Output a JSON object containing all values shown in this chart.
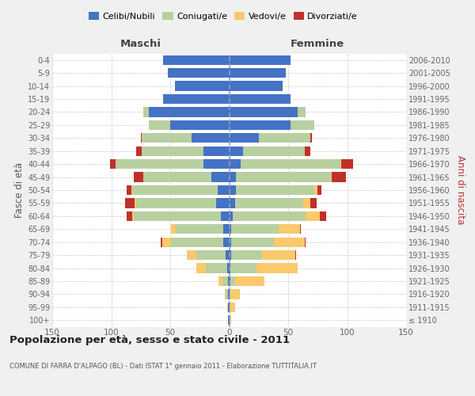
{
  "age_groups": [
    "100+",
    "95-99",
    "90-94",
    "85-89",
    "80-84",
    "75-79",
    "70-74",
    "65-69",
    "60-64",
    "55-59",
    "50-54",
    "45-49",
    "40-44",
    "35-39",
    "30-34",
    "25-29",
    "20-24",
    "15-19",
    "10-14",
    "5-9",
    "0-4"
  ],
  "birth_years": [
    "≤ 1910",
    "1911-1915",
    "1916-1920",
    "1921-1925",
    "1926-1930",
    "1931-1935",
    "1936-1940",
    "1941-1945",
    "1946-1950",
    "1951-1955",
    "1956-1960",
    "1961-1965",
    "1966-1970",
    "1971-1975",
    "1976-1980",
    "1981-1985",
    "1986-1990",
    "1991-1995",
    "1996-2000",
    "2001-2005",
    "2006-2010"
  ],
  "colors": {
    "celibi": "#4472C4",
    "coniugati": "#b8cfa0",
    "vedovi": "#f9c96b",
    "divorziati": "#c0302a"
  },
  "maschi": {
    "celibi": [
      1,
      1,
      1,
      1,
      2,
      3,
      5,
      5,
      7,
      11,
      10,
      15,
      22,
      22,
      32,
      50,
      68,
      56,
      46,
      52,
      56
    ],
    "coniugati": [
      0,
      0,
      2,
      5,
      18,
      25,
      44,
      40,
      74,
      68,
      72,
      58,
      74,
      52,
      42,
      18,
      4,
      0,
      0,
      0,
      0
    ],
    "vedovi": [
      0,
      1,
      1,
      3,
      8,
      8,
      8,
      4,
      1,
      1,
      1,
      0,
      0,
      0,
      0,
      0,
      1,
      0,
      0,
      0,
      0
    ],
    "divorziati": [
      0,
      0,
      0,
      0,
      0,
      0,
      1,
      0,
      5,
      8,
      4,
      8,
      5,
      5,
      1,
      0,
      0,
      0,
      0,
      0,
      0
    ]
  },
  "femmine": {
    "celibi": [
      0,
      0,
      0,
      1,
      1,
      2,
      2,
      2,
      3,
      5,
      6,
      6,
      10,
      12,
      25,
      52,
      58,
      52,
      45,
      48,
      52
    ],
    "coniugati": [
      0,
      1,
      1,
      4,
      22,
      26,
      36,
      40,
      62,
      58,
      66,
      80,
      84,
      52,
      44,
      20,
      7,
      0,
      0,
      0,
      0
    ],
    "vedovi": [
      2,
      4,
      8,
      25,
      35,
      28,
      26,
      18,
      12,
      6,
      3,
      1,
      1,
      0,
      0,
      0,
      0,
      0,
      0,
      0,
      0
    ],
    "divorziati": [
      0,
      0,
      0,
      0,
      0,
      1,
      1,
      1,
      5,
      5,
      3,
      12,
      10,
      5,
      1,
      0,
      0,
      0,
      0,
      0,
      0
    ]
  },
  "xlim": 150,
  "title": "Popolazione per età, sesso e stato civile - 2011",
  "subtitle": "COMUNE DI FARRA D'ALPAGO (BL) - Dati ISTAT 1° gennaio 2011 - Elaborazione TUTTITALIA.IT",
  "ylabel": "Fasce di età",
  "ylabel_right": "Anni di nascita",
  "legend_labels": [
    "Celibi/Nubili",
    "Coniugati/e",
    "Vedovi/e",
    "Divorziati/e"
  ],
  "header_maschi": "Maschi",
  "header_femmine": "Femmine",
  "bg_color": "#f0f0f0",
  "plot_bg_color": "#ffffff",
  "grid_color": "#c8c8c8"
}
